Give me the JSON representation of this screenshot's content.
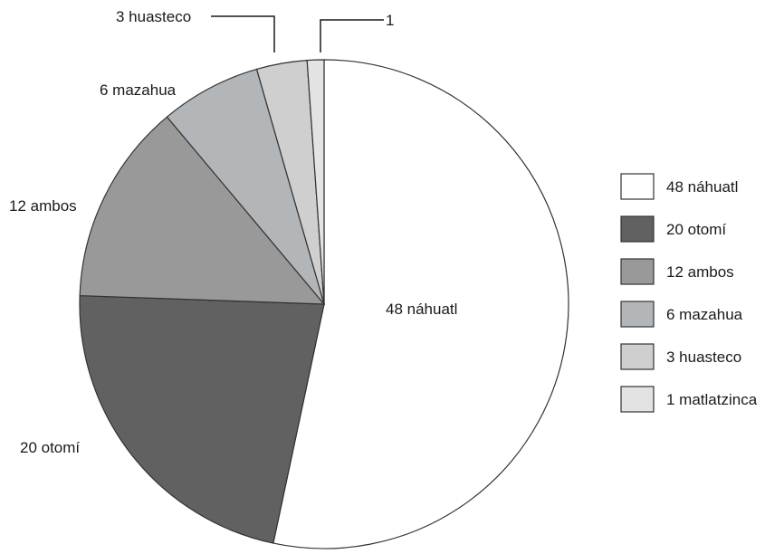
{
  "chart_data": {
    "type": "pie",
    "start_angle_deg": 0,
    "direction": "clockwise",
    "stroke": "#333333",
    "slices": [
      {
        "label": "48 náhuatl",
        "legend": "48 náhuatl",
        "value": 48,
        "color": "#ffffff"
      },
      {
        "label": "20 otomí",
        "legend": "20 otomí",
        "value": 20,
        "color": "#616161"
      },
      {
        "label": "12 ambos",
        "legend": "12 ambos",
        "value": 12,
        "color": "#999999"
      },
      {
        "label": "6 mazahua",
        "legend": "6 mazahua",
        "value": 6,
        "color": "#b3b6b8"
      },
      {
        "label": "3 huasteco",
        "legend": "3 huasteco",
        "value": 3,
        "color": "#cfcfcf"
      },
      {
        "label": "1",
        "legend": "1 matlatzinca",
        "value": 1,
        "color": "#e3e3e3"
      }
    ],
    "legend_position": "right"
  }
}
